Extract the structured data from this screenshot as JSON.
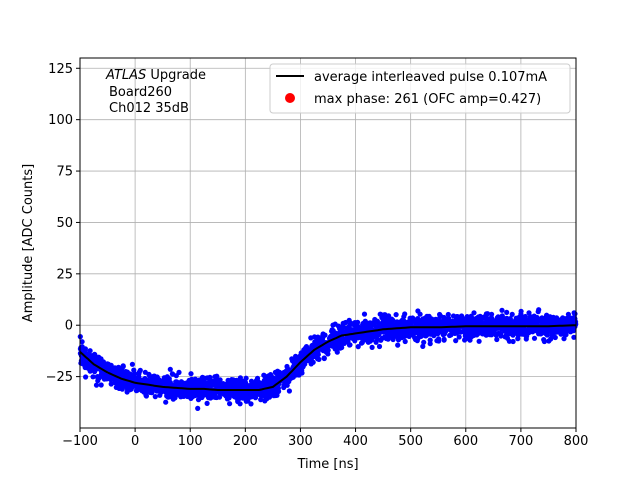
{
  "chart_data": {
    "type": "scatter",
    "xlabel": "Time [ns]",
    "ylabel": "Amplitude [ADC Counts]",
    "xlim": [
      -100,
      800
    ],
    "ylim": [
      -50,
      130
    ],
    "xticks": [
      -100,
      0,
      100,
      200,
      300,
      400,
      500,
      600,
      700,
      800
    ],
    "yticks": [
      -25,
      0,
      25,
      50,
      75,
      100,
      125
    ],
    "grid": true,
    "legend_position": "top-right",
    "annotation": {
      "line1_italic": "ATLAS",
      "line1_rest": " Upgrade",
      "line2": "Board260",
      "line3": "Ch012 35dB"
    },
    "series": [
      {
        "name": "average interleaved pulse 0.107mA",
        "kind": "line",
        "color": "#000000",
        "x": [
          -100,
          -75,
          -50,
          -25,
          0,
          25,
          50,
          75,
          100,
          125,
          150,
          175,
          200,
          225,
          250,
          275,
          300,
          325,
          350,
          375,
          400,
          425,
          450,
          475,
          500,
          550,
          600,
          650,
          700,
          750,
          800
        ],
        "y": [
          -13,
          -19,
          -23,
          -26,
          -28,
          -29,
          -30,
          -30.5,
          -31,
          -31,
          -31.5,
          -31.5,
          -31.5,
          -31.5,
          -30,
          -25,
          -18,
          -12,
          -8,
          -5,
          -4,
          -3,
          -2,
          -1.5,
          -1,
          -1,
          -0.5,
          -0.5,
          -0.5,
          -0.5,
          0
        ]
      },
      {
        "name": "max phase: 261 (OFC amp=0.427)",
        "kind": "scatter",
        "color": "#0000ff",
        "spread": 3.5
      }
    ],
    "legend_marker_colors": [
      "#000000",
      "#ff0000"
    ]
  }
}
